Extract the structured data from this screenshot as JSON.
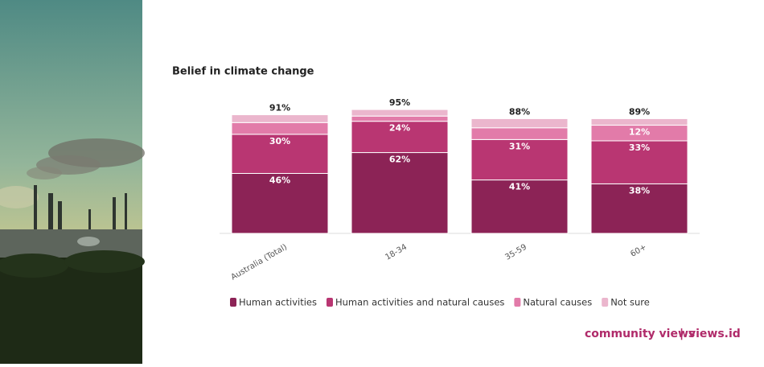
{
  "chart_data": {
    "type": "stacked-bar",
    "title": "Belief in climate change",
    "categories": [
      "Australia (Total)",
      "18-34",
      "35-59",
      "60+"
    ],
    "series": [
      {
        "name": "Human activities",
        "color": "#8c2356",
        "values": [
          46,
          62,
          41,
          38
        ],
        "value_labels": [
          "46%",
          "62%",
          "41%",
          "38%"
        ]
      },
      {
        "name": "Human activities and natural causes",
        "color": "#b93672",
        "values": [
          30,
          24,
          31,
          33
        ],
        "value_labels": [
          "30%",
          "24%",
          "31%",
          "33%"
        ]
      },
      {
        "name": "Natural causes",
        "color": "#e27ba9",
        "values": [
          9,
          4,
          9,
          12
        ],
        "value_labels": [
          null,
          null,
          null,
          "12%"
        ]
      },
      {
        "name": "Not sure",
        "color": "#ebb6cd",
        "values": [
          6,
          5,
          7,
          5
        ],
        "value_labels": [
          null,
          null,
          null,
          null
        ]
      }
    ],
    "total_labels": [
      "91%",
      "95%",
      "88%",
      "89%"
    ]
  },
  "footer": {
    "brand": "community views",
    "separator": "|",
    "site": "views.id"
  }
}
